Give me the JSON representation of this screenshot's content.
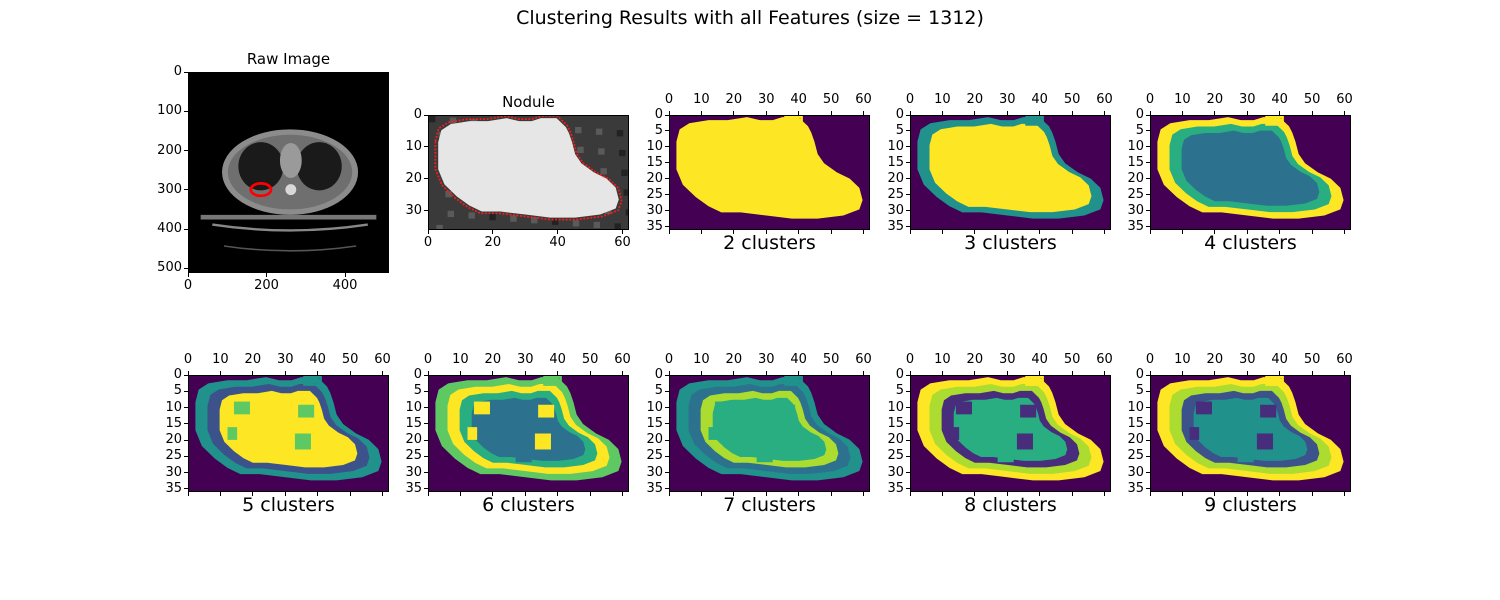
{
  "figure": {
    "title": "Clustering Results with all Features (size = 1312)"
  },
  "chart_data": [
    {
      "id": "raw",
      "type": "heatmap",
      "title": "Raw Image",
      "xlabel": "",
      "ylabel": "",
      "xlim": [
        0,
        512
      ],
      "ylim": [
        512,
        0
      ],
      "xticks": [
        0,
        200,
        400
      ],
      "yticks": [
        0,
        100,
        200,
        300,
        400,
        500
      ],
      "xaxis_position": "bottom",
      "colormap": "gray"
    },
    {
      "id": "nodule",
      "type": "heatmap",
      "title": "Nodule",
      "xlabel": "",
      "ylabel": "",
      "xlim": [
        0,
        62
      ],
      "ylim": [
        36,
        0
      ],
      "xticks": [
        0,
        20,
        40,
        60
      ],
      "yticks": [
        0,
        10,
        20,
        30
      ],
      "xaxis_position": "bottom",
      "colormap": "gray"
    },
    {
      "id": "k2",
      "type": "heatmap",
      "title": "",
      "xlabel": "2 clusters",
      "ylabel": "",
      "clusters": 2,
      "xlim": [
        0,
        62
      ],
      "ylim": [
        36,
        0
      ],
      "xticks": [
        0,
        10,
        20,
        30,
        40,
        50,
        60
      ],
      "yticks": [
        0,
        5,
        10,
        15,
        20,
        25,
        30,
        35
      ],
      "xaxis_position": "top",
      "colormap": "viridis"
    },
    {
      "id": "k3",
      "type": "heatmap",
      "title": "",
      "xlabel": "3 clusters",
      "ylabel": "",
      "clusters": 3,
      "xlim": [
        0,
        62
      ],
      "ylim": [
        36,
        0
      ],
      "xticks": [
        0,
        10,
        20,
        30,
        40,
        50,
        60
      ],
      "yticks": [
        0,
        5,
        10,
        15,
        20,
        25,
        30,
        35
      ],
      "xaxis_position": "top",
      "colormap": "viridis"
    },
    {
      "id": "k4",
      "type": "heatmap",
      "title": "",
      "xlabel": "4 clusters",
      "ylabel": "",
      "clusters": 4,
      "xlim": [
        0,
        62
      ],
      "ylim": [
        36,
        0
      ],
      "xticks": [
        0,
        10,
        20,
        30,
        40,
        50,
        60
      ],
      "yticks": [
        0,
        5,
        10,
        15,
        20,
        25,
        30,
        35
      ],
      "xaxis_position": "top",
      "colormap": "viridis"
    },
    {
      "id": "k5",
      "type": "heatmap",
      "title": "",
      "xlabel": "5 clusters",
      "ylabel": "",
      "clusters": 5,
      "xlim": [
        0,
        62
      ],
      "ylim": [
        36,
        0
      ],
      "xticks": [
        0,
        10,
        20,
        30,
        40,
        50,
        60
      ],
      "yticks": [
        0,
        5,
        10,
        15,
        20,
        25,
        30,
        35
      ],
      "xaxis_position": "top",
      "colormap": "viridis"
    },
    {
      "id": "k6",
      "type": "heatmap",
      "title": "",
      "xlabel": "6 clusters",
      "ylabel": "",
      "clusters": 6,
      "xlim": [
        0,
        62
      ],
      "ylim": [
        36,
        0
      ],
      "xticks": [
        0,
        10,
        20,
        30,
        40,
        50,
        60
      ],
      "yticks": [
        0,
        5,
        10,
        15,
        20,
        25,
        30,
        35
      ],
      "xaxis_position": "top",
      "colormap": "viridis"
    },
    {
      "id": "k7",
      "type": "heatmap",
      "title": "",
      "xlabel": "7 clusters",
      "ylabel": "",
      "clusters": 7,
      "xlim": [
        0,
        62
      ],
      "ylim": [
        36,
        0
      ],
      "xticks": [
        0,
        10,
        20,
        30,
        40,
        50,
        60
      ],
      "yticks": [
        0,
        5,
        10,
        15,
        20,
        25,
        30,
        35
      ],
      "xaxis_position": "top",
      "colormap": "viridis"
    },
    {
      "id": "k8",
      "type": "heatmap",
      "title": "",
      "xlabel": "8 clusters",
      "ylabel": "",
      "clusters": 8,
      "xlim": [
        0,
        62
      ],
      "ylim": [
        36,
        0
      ],
      "xticks": [
        0,
        10,
        20,
        30,
        40,
        50,
        60
      ],
      "yticks": [
        0,
        5,
        10,
        15,
        20,
        25,
        30,
        35
      ],
      "xaxis_position": "top",
      "colormap": "viridis"
    },
    {
      "id": "k9",
      "type": "heatmap",
      "title": "",
      "xlabel": "9 clusters",
      "ylabel": "",
      "clusters": 9,
      "xlim": [
        0,
        62
      ],
      "ylim": [
        36,
        0
      ],
      "xticks": [
        0,
        10,
        20,
        30,
        40,
        50,
        60
      ],
      "yticks": [
        0,
        5,
        10,
        15,
        20,
        25,
        30,
        35
      ],
      "xaxis_position": "top",
      "colormap": "viridis"
    }
  ]
}
